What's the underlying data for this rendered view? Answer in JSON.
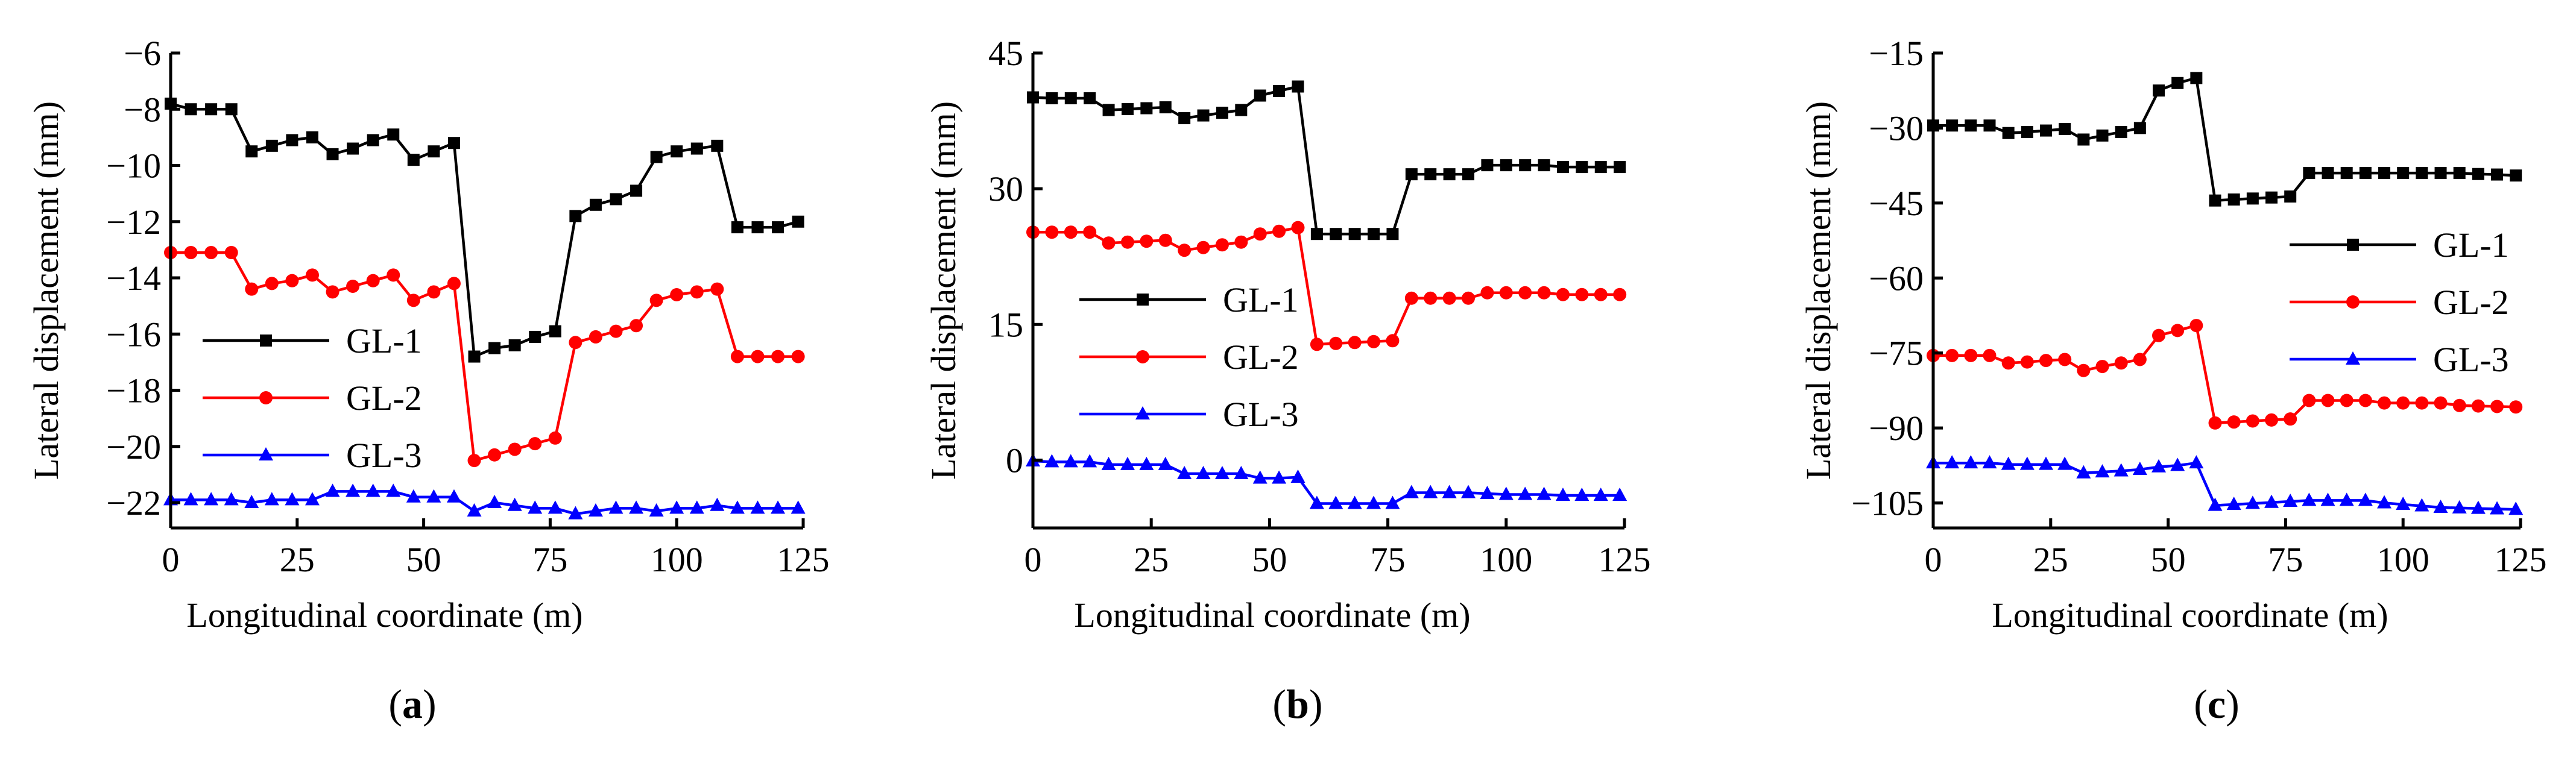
{
  "chart_data": [
    {
      "type": "line",
      "panel_label": "a",
      "xlabel": "Longitudinal coordinate (m)",
      "ylabel": "Lateral displacement (mm)",
      "xlim": [
        0,
        125
      ],
      "ylim": [
        -22.9,
        -6
      ],
      "xticks": [
        0,
        25,
        50,
        75,
        100,
        125
      ],
      "xtick_labels": [
        "0",
        "25",
        "50",
        "75",
        "100",
        "125"
      ],
      "yticks": [
        -22,
        -20,
        -18,
        -16,
        -14,
        -12,
        -10,
        -8,
        -6
      ],
      "ytick_labels": [
        "−22",
        "−20",
        "−18",
        "−16",
        "−14",
        "−12",
        "−10",
        "−8",
        "−6"
      ],
      "legend_position": "lower-left",
      "x": [
        0,
        4,
        8,
        12,
        16,
        20,
        24,
        28,
        32,
        36,
        40,
        44,
        48,
        52,
        56,
        60,
        64,
        68,
        72,
        76,
        80,
        84,
        88,
        92,
        96,
        100,
        104,
        108,
        112,
        116,
        120,
        124
      ],
      "series": [
        {
          "name": "GL-1",
          "color": "#000000",
          "marker": "square",
          "values": [
            -7.8,
            -8.0,
            -8.0,
            -8.0,
            -9.5,
            -9.3,
            -9.1,
            -9.0,
            -9.6,
            -9.4,
            -9.1,
            -8.9,
            -9.8,
            -9.5,
            -9.2,
            -16.8,
            -16.5,
            -16.4,
            -16.1,
            -15.9,
            -11.8,
            -11.4,
            -11.2,
            -10.9,
            -9.7,
            -9.5,
            -9.4,
            -9.3,
            -12.2,
            -12.2,
            -12.2,
            -12.0
          ]
        },
        {
          "name": "GL-2",
          "color": "#ff0000",
          "marker": "circle",
          "values": [
            -13.1,
            -13.1,
            -13.1,
            -13.1,
            -14.4,
            -14.2,
            -14.1,
            -13.9,
            -14.5,
            -14.3,
            -14.1,
            -13.9,
            -14.8,
            -14.5,
            -14.2,
            -20.5,
            -20.3,
            -20.1,
            -19.9,
            -19.7,
            -16.3,
            -16.1,
            -15.9,
            -15.7,
            -14.8,
            -14.6,
            -14.5,
            -14.4,
            -16.8,
            -16.8,
            -16.8,
            -16.8
          ]
        },
        {
          "name": "GL-3",
          "color": "#0000ff",
          "marker": "triangle",
          "values": [
            -21.9,
            -21.9,
            -21.9,
            -21.9,
            -22.0,
            -21.9,
            -21.9,
            -21.9,
            -21.6,
            -21.6,
            -21.6,
            -21.6,
            -21.8,
            -21.8,
            -21.8,
            -22.3,
            -22.0,
            -22.1,
            -22.2,
            -22.2,
            -22.4,
            -22.3,
            -22.2,
            -22.2,
            -22.3,
            -22.2,
            -22.2,
            -22.1,
            -22.2,
            -22.2,
            -22.2,
            -22.2
          ]
        }
      ]
    },
    {
      "type": "line",
      "panel_label": "b",
      "xlabel": "Longitudinal coordinate (m)",
      "ylabel": "Lateral displacement (mm)",
      "xlim": [
        0,
        125
      ],
      "ylim": [
        -7.5,
        45
      ],
      "xticks": [
        0,
        25,
        50,
        75,
        100,
        125
      ],
      "xtick_labels": [
        "0",
        "25",
        "50",
        "75",
        "100",
        "125"
      ],
      "yticks": [
        0,
        15,
        30,
        45
      ],
      "ytick_labels": [
        "0",
        "15",
        "30",
        "45"
      ],
      "legend_position": "middle-left",
      "x": [
        0,
        4,
        8,
        12,
        16,
        20,
        24,
        28,
        32,
        36,
        40,
        44,
        48,
        52,
        56,
        60,
        64,
        68,
        72,
        76,
        80,
        84,
        88,
        92,
        96,
        100,
        104,
        108,
        112,
        116,
        120,
        124
      ],
      "series": [
        {
          "name": "GL-1",
          "color": "#000000",
          "marker": "square",
          "values": [
            40.1,
            40.0,
            40.0,
            40.0,
            38.7,
            38.8,
            38.9,
            39.0,
            37.8,
            38.1,
            38.4,
            38.7,
            40.3,
            40.8,
            41.3,
            25.0,
            25.0,
            25.0,
            25.0,
            25.0,
            31.6,
            31.6,
            31.6,
            31.6,
            32.6,
            32.6,
            32.6,
            32.6,
            32.4,
            32.4,
            32.4,
            32.4
          ]
        },
        {
          "name": "GL-2",
          "color": "#ff0000",
          "marker": "circle",
          "values": [
            25.2,
            25.2,
            25.2,
            25.2,
            24.0,
            24.1,
            24.2,
            24.3,
            23.2,
            23.5,
            23.8,
            24.1,
            25.0,
            25.3,
            25.7,
            12.8,
            12.9,
            13.0,
            13.1,
            13.2,
            17.9,
            17.9,
            17.9,
            17.9,
            18.5,
            18.5,
            18.5,
            18.5,
            18.3,
            18.3,
            18.3,
            18.3
          ]
        },
        {
          "name": "GL-3",
          "color": "#0000ff",
          "marker": "triangle",
          "values": [
            -0.1,
            -0.2,
            -0.2,
            -0.2,
            -0.5,
            -0.5,
            -0.5,
            -0.5,
            -1.5,
            -1.5,
            -1.5,
            -1.5,
            -2.0,
            -2.0,
            -1.9,
            -4.8,
            -4.8,
            -4.8,
            -4.8,
            -4.8,
            -3.6,
            -3.6,
            -3.6,
            -3.6,
            -3.7,
            -3.8,
            -3.8,
            -3.8,
            -3.9,
            -3.9,
            -3.9,
            -3.9
          ]
        }
      ]
    },
    {
      "type": "line",
      "panel_label": "c",
      "xlabel": "Longitudinal coordinate (m)",
      "ylabel": "Lateral displacement (mm)",
      "xlim": [
        0,
        125
      ],
      "ylim": [
        -110,
        -15
      ],
      "xticks": [
        0,
        25,
        50,
        75,
        100,
        125
      ],
      "xtick_labels": [
        "0",
        "25",
        "50",
        "75",
        "100",
        "125"
      ],
      "yticks": [
        -105,
        -90,
        -75,
        -60,
        -45,
        -30,
        -15
      ],
      "ytick_labels": [
        "−105",
        "−90",
        "−75",
        "−60",
        "−45",
        "−30",
        "−15"
      ],
      "legend_position": "middle-right",
      "x": [
        0,
        4,
        8,
        12,
        16,
        20,
        24,
        28,
        32,
        36,
        40,
        44,
        48,
        52,
        56,
        60,
        64,
        68,
        72,
        76,
        80,
        84,
        88,
        92,
        96,
        100,
        104,
        108,
        112,
        116,
        120,
        124
      ],
      "series": [
        {
          "name": "GL-1",
          "color": "#000000",
          "marker": "square",
          "values": [
            -29.5,
            -29.5,
            -29.5,
            -29.5,
            -31.0,
            -30.8,
            -30.5,
            -30.2,
            -32.3,
            -31.5,
            -30.8,
            -30.0,
            -22.5,
            -21.0,
            -20.0,
            -44.5,
            -44.3,
            -44.1,
            -43.9,
            -43.7,
            -39.0,
            -39.0,
            -39.0,
            -39.0,
            -39.0,
            -39.0,
            -39.0,
            -39.0,
            -39.0,
            -39.2,
            -39.3,
            -39.5
          ]
        },
        {
          "name": "GL-2",
          "color": "#ff0000",
          "marker": "circle",
          "values": [
            -75.5,
            -75.5,
            -75.5,
            -75.5,
            -77.0,
            -76.8,
            -76.5,
            -76.3,
            -78.5,
            -77.7,
            -77.0,
            -76.3,
            -71.5,
            -70.5,
            -69.5,
            -89.0,
            -88.8,
            -88.6,
            -88.4,
            -88.2,
            -84.5,
            -84.5,
            -84.5,
            -84.5,
            -85.0,
            -85.0,
            -85.0,
            -85.0,
            -85.5,
            -85.6,
            -85.7,
            -85.8
          ]
        },
        {
          "name": "GL-3",
          "color": "#0000ff",
          "marker": "triangle",
          "values": [
            -97.0,
            -97.0,
            -97.0,
            -97.0,
            -97.3,
            -97.3,
            -97.3,
            -97.3,
            -99.0,
            -98.8,
            -98.6,
            -98.3,
            -97.8,
            -97.5,
            -97.0,
            -105.5,
            -105.3,
            -105.1,
            -104.9,
            -104.7,
            -104.5,
            -104.5,
            -104.5,
            -104.5,
            -105.0,
            -105.3,
            -105.6,
            -105.9,
            -106.0,
            -106.1,
            -106.2,
            -106.3
          ]
        }
      ]
    }
  ]
}
